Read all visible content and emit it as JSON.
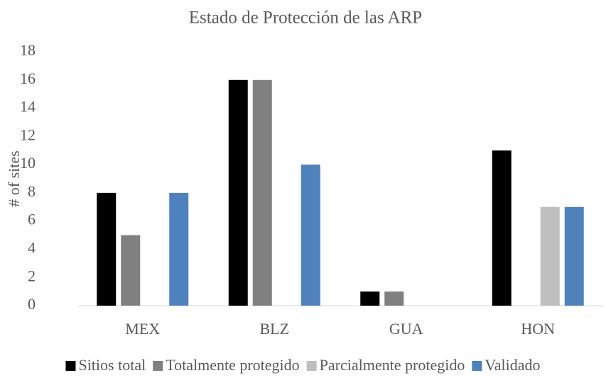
{
  "chart_data": {
    "type": "bar",
    "title": "Estado de Protección de las ARP",
    "y_label": "# of sites",
    "categories": [
      "MEX",
      "BLZ",
      "GUA",
      "HON"
    ],
    "series": [
      {
        "name": "Sitios total",
        "color": "#000000",
        "values": [
          8,
          16,
          1,
          11
        ]
      },
      {
        "name": "Totalmente protegido",
        "color": "#808080",
        "values": [
          5,
          16,
          1,
          0
        ]
      },
      {
        "name": "Parcialmente protegido",
        "color": "#bfbfbf",
        "values": [
          0,
          0,
          0,
          7
        ]
      },
      {
        "name": "Validado",
        "color": "#4f81bd",
        "values": [
          8,
          10,
          0,
          7
        ]
      }
    ],
    "ylim": [
      0,
      18
    ],
    "yticks": [
      0,
      2,
      4,
      6,
      8,
      10,
      12,
      14,
      16,
      18
    ],
    "grid": false,
    "legend": "bottom"
  }
}
